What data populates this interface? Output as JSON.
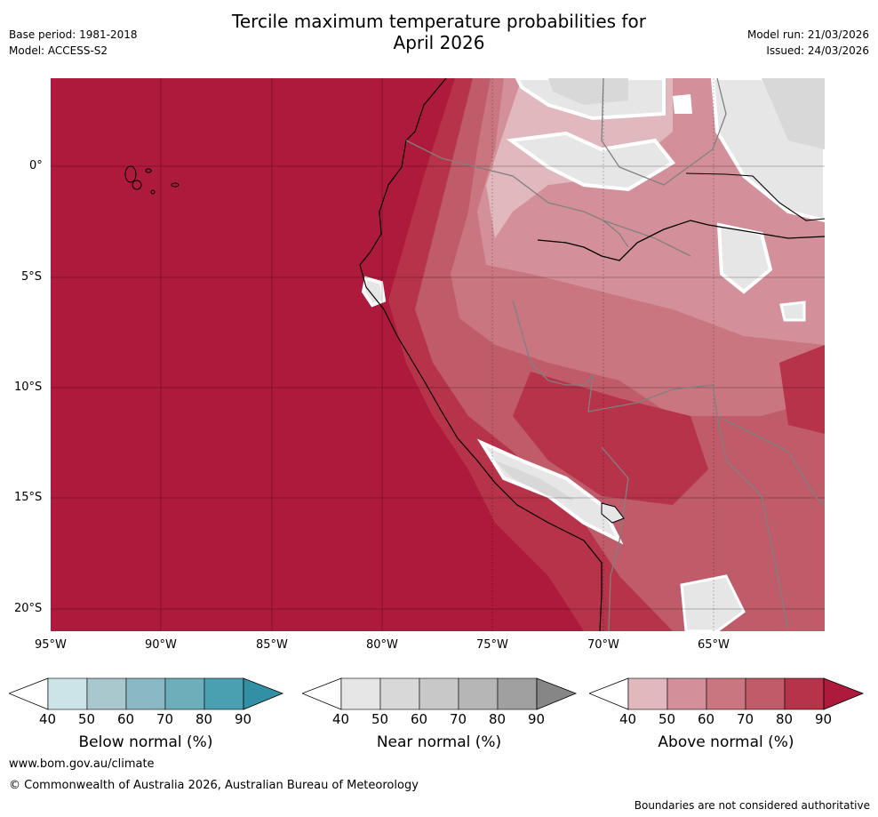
{
  "title_line1": "Tercile maximum temperature probabilities for",
  "title_line2": "April 2026",
  "base_period": "Base period: 1981-2018",
  "model": "Model: ACCESS-S2",
  "model_run": "Model run: 21/03/2026",
  "issued": "Issued: 24/03/2026",
  "map": {
    "lat_labels": [
      "0°",
      "5°S",
      "10°S",
      "15°S",
      "20°S"
    ],
    "lon_labels": [
      "95°W",
      "90°W",
      "85°W",
      "80°W",
      "75°W",
      "70°W",
      "65°W"
    ]
  },
  "colorbars": [
    {
      "name": "below",
      "label": "Below normal (%)",
      "ticks": [
        "40",
        "50",
        "60",
        "70",
        "80",
        "90"
      ],
      "colors": [
        "#cce3e7",
        "#a8c8ce",
        "#8ab8c4",
        "#6eaebb",
        "#4a9fb0",
        "#3190a3"
      ]
    },
    {
      "name": "near",
      "label": "Near normal (%)",
      "ticks": [
        "40",
        "50",
        "60",
        "70",
        "80",
        "90"
      ],
      "colors": [
        "#e6e6e6",
        "#d8d8d8",
        "#c8c8c8",
        "#b6b6b6",
        "#a0a0a0",
        "#868686"
      ]
    },
    {
      "name": "above",
      "label": "Above normal (%)",
      "ticks": [
        "40",
        "50",
        "60",
        "70",
        "80",
        "90"
      ],
      "colors": [
        "#e0b8bd",
        "#d4909a",
        "#c97681",
        "#c05b69",
        "#b73349",
        "#ae1a3c"
      ]
    }
  ],
  "website": "www.bom.gov.au/climate",
  "copyright": "© Commonwealth of Australia 2026, Australian Bureau of Meteorology",
  "disclaimer": "Boundaries are not considered authoritative"
}
